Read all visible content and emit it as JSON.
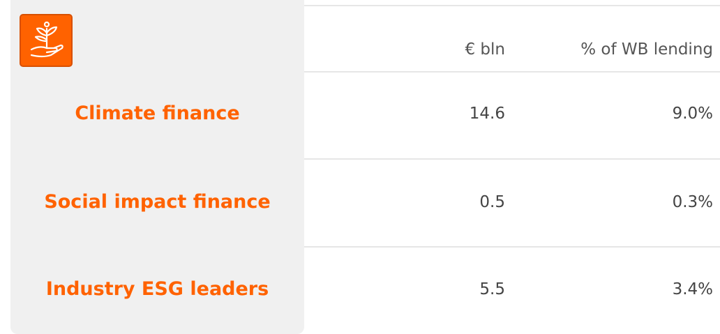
{
  "table": {
    "headers": [
      "€ bln",
      "% of WB lending"
    ],
    "rows": [
      [
        "Climate finance",
        "14.6",
        "9.0%"
      ],
      [
        "Social impact finance",
        "0.5",
        "0.3%"
      ],
      [
        "Industry ESG leaders",
        "5.5",
        "3.4%"
      ]
    ]
  }
}
